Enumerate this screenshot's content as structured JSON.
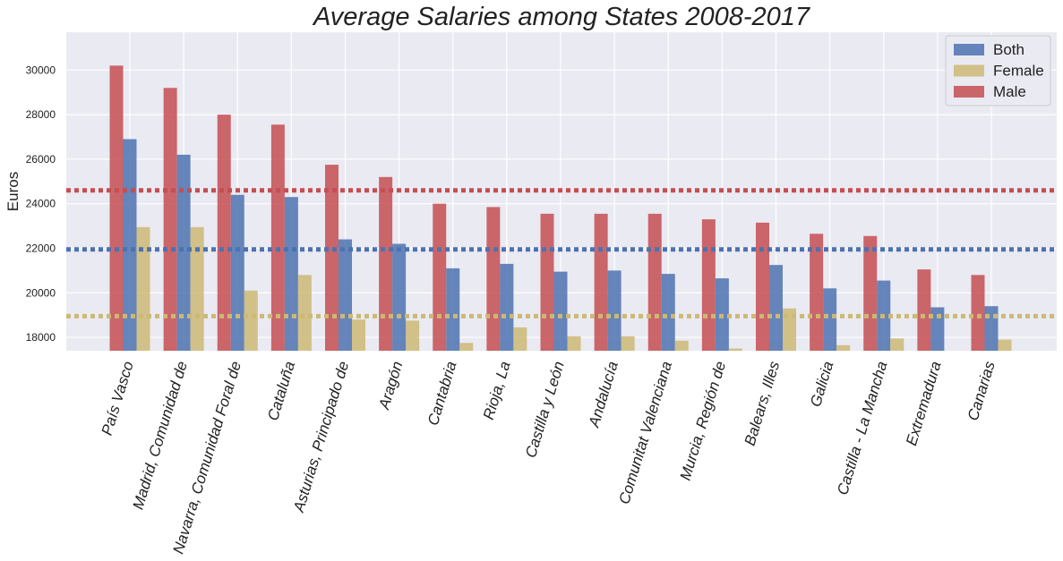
{
  "chart_data": {
    "type": "bar",
    "title": "Average Salaries among States 2008-2017",
    "xlabel": "",
    "ylabel": "Euros",
    "ylim": [
      17400,
      31700
    ],
    "yticks": [
      18000,
      20000,
      22000,
      24000,
      26000,
      28000,
      30000
    ],
    "grid": true,
    "legend_position": "top-right",
    "categories": [
      "País Vasco",
      "Madrid, Comunidad de",
      "Navarra, Comunidad Foral de",
      "Cataluña",
      "Asturias, Principado de",
      "Aragón",
      "Cantabria",
      "Rioja, La",
      "Castilla y León",
      "Andalucía",
      "Comunitat Valenciana",
      "Murcia, Región de",
      "Balears, Illes",
      "Galicia",
      "Castilla - La Mancha",
      "Extremadura",
      "Canarias"
    ],
    "series": [
      {
        "name": "Male",
        "color": "#c44e52",
        "values": [
          30200,
          29200,
          28000,
          27550,
          25750,
          25200,
          24000,
          23850,
          23550,
          23550,
          23550,
          23300,
          23150,
          22650,
          22550,
          21050,
          20800
        ]
      },
      {
        "name": "Both",
        "color": "#4c72b0",
        "values": [
          26900,
          26200,
          24400,
          24300,
          22400,
          22200,
          21100,
          21300,
          20950,
          21000,
          20850,
          20650,
          21250,
          20200,
          20550,
          19350,
          19400
        ]
      },
      {
        "name": "Female",
        "color": "#ccb974",
        "values": [
          22950,
          22950,
          20100,
          20800,
          18800,
          18750,
          17750,
          18450,
          18050,
          18050,
          17850,
          17500,
          19300,
          17650,
          17950,
          17200,
          17900
        ]
      }
    ],
    "reference_lines": [
      {
        "series": "Male",
        "value": 24600,
        "color": "#c44e52",
        "style": "dotted"
      },
      {
        "series": "Both",
        "value": 21950,
        "color": "#4c72b0",
        "style": "dotted"
      },
      {
        "series": "Female",
        "value": 18950,
        "color": "#ccb974",
        "style": "dotted"
      }
    ],
    "legend": [
      "Both",
      "Female",
      "Male"
    ]
  }
}
